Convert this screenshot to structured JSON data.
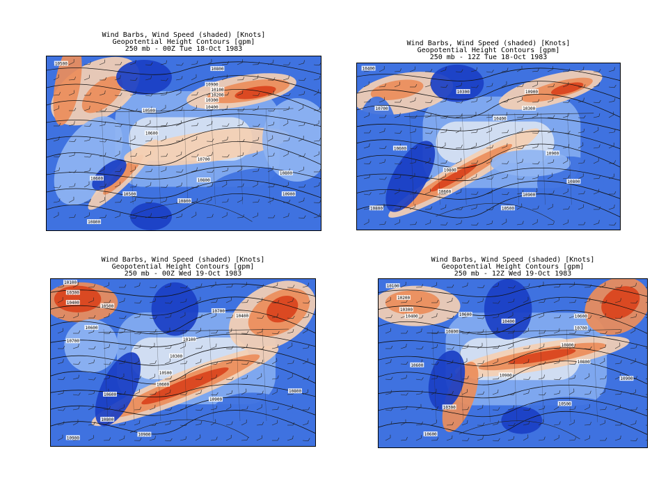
{
  "colors": {
    "deep_blue": "#1a3fc4",
    "mid_blue": "#3f72e0",
    "light_blue": "#8fb4f2",
    "white": "#f3f3f3",
    "peach": "#f4cfb3",
    "orange": "#ec8d5a",
    "red": "#d9431c"
  },
  "panels": [
    {
      "title_lines": [
        "Wind Barbs, Wind Speed (shaded) [Knots]",
        "Geopotential Height Contours [gpm]",
        "250 mb - 00Z Tue 18-Oct 1983"
      ],
      "contour_labels": [
        "10500",
        "10800",
        "10900",
        "10100",
        "10200",
        "10300",
        "10400",
        "10500",
        "10600",
        "10700",
        "10800",
        "10800",
        "10600",
        "10500",
        "10900",
        "10800",
        "10800"
      ]
    },
    {
      "title_lines": [
        "Wind Barbs, Wind Speed (shaded) [Knots]",
        "Geopotential Height Contours [gpm]",
        "250 mb - 12Z Tue 18-Oct 1983"
      ],
      "contour_labels": [
        "10400",
        "10300",
        "10900",
        "10300",
        "10400",
        "10700",
        "10600",
        "10800",
        "10900",
        "10800",
        "10600",
        "10900",
        "10800",
        "10500"
      ]
    },
    {
      "title_lines": [
        "Wind Barbs, Wind Speed (shaded) [Knots]",
        "Geopotential Height Contours [gpm]",
        "250 mb - 00Z Wed 19-Oct 1983"
      ],
      "contour_labels": [
        "10100",
        "10300",
        "10400",
        "10500",
        "10600",
        "10700",
        "10700",
        "10400",
        "10100",
        "10300",
        "10500",
        "10600",
        "10600",
        "10900",
        "10800",
        "10800",
        "10900",
        "10900"
      ]
    },
    {
      "title_lines": [
        "Wind Barbs, Wind Speed (shaded) [Knots]",
        "Geopotential Height Contours [gpm]",
        "250 mb - 12Z Wed 19-Oct 1983"
      ],
      "contour_labels": [
        "10100",
        "10200",
        "10300",
        "10400",
        "10600",
        "10800",
        "10400",
        "10600",
        "10700",
        "10800",
        "10800",
        "10600",
        "10900",
        "10900",
        "10300",
        "10500",
        "10600"
      ]
    }
  ]
}
